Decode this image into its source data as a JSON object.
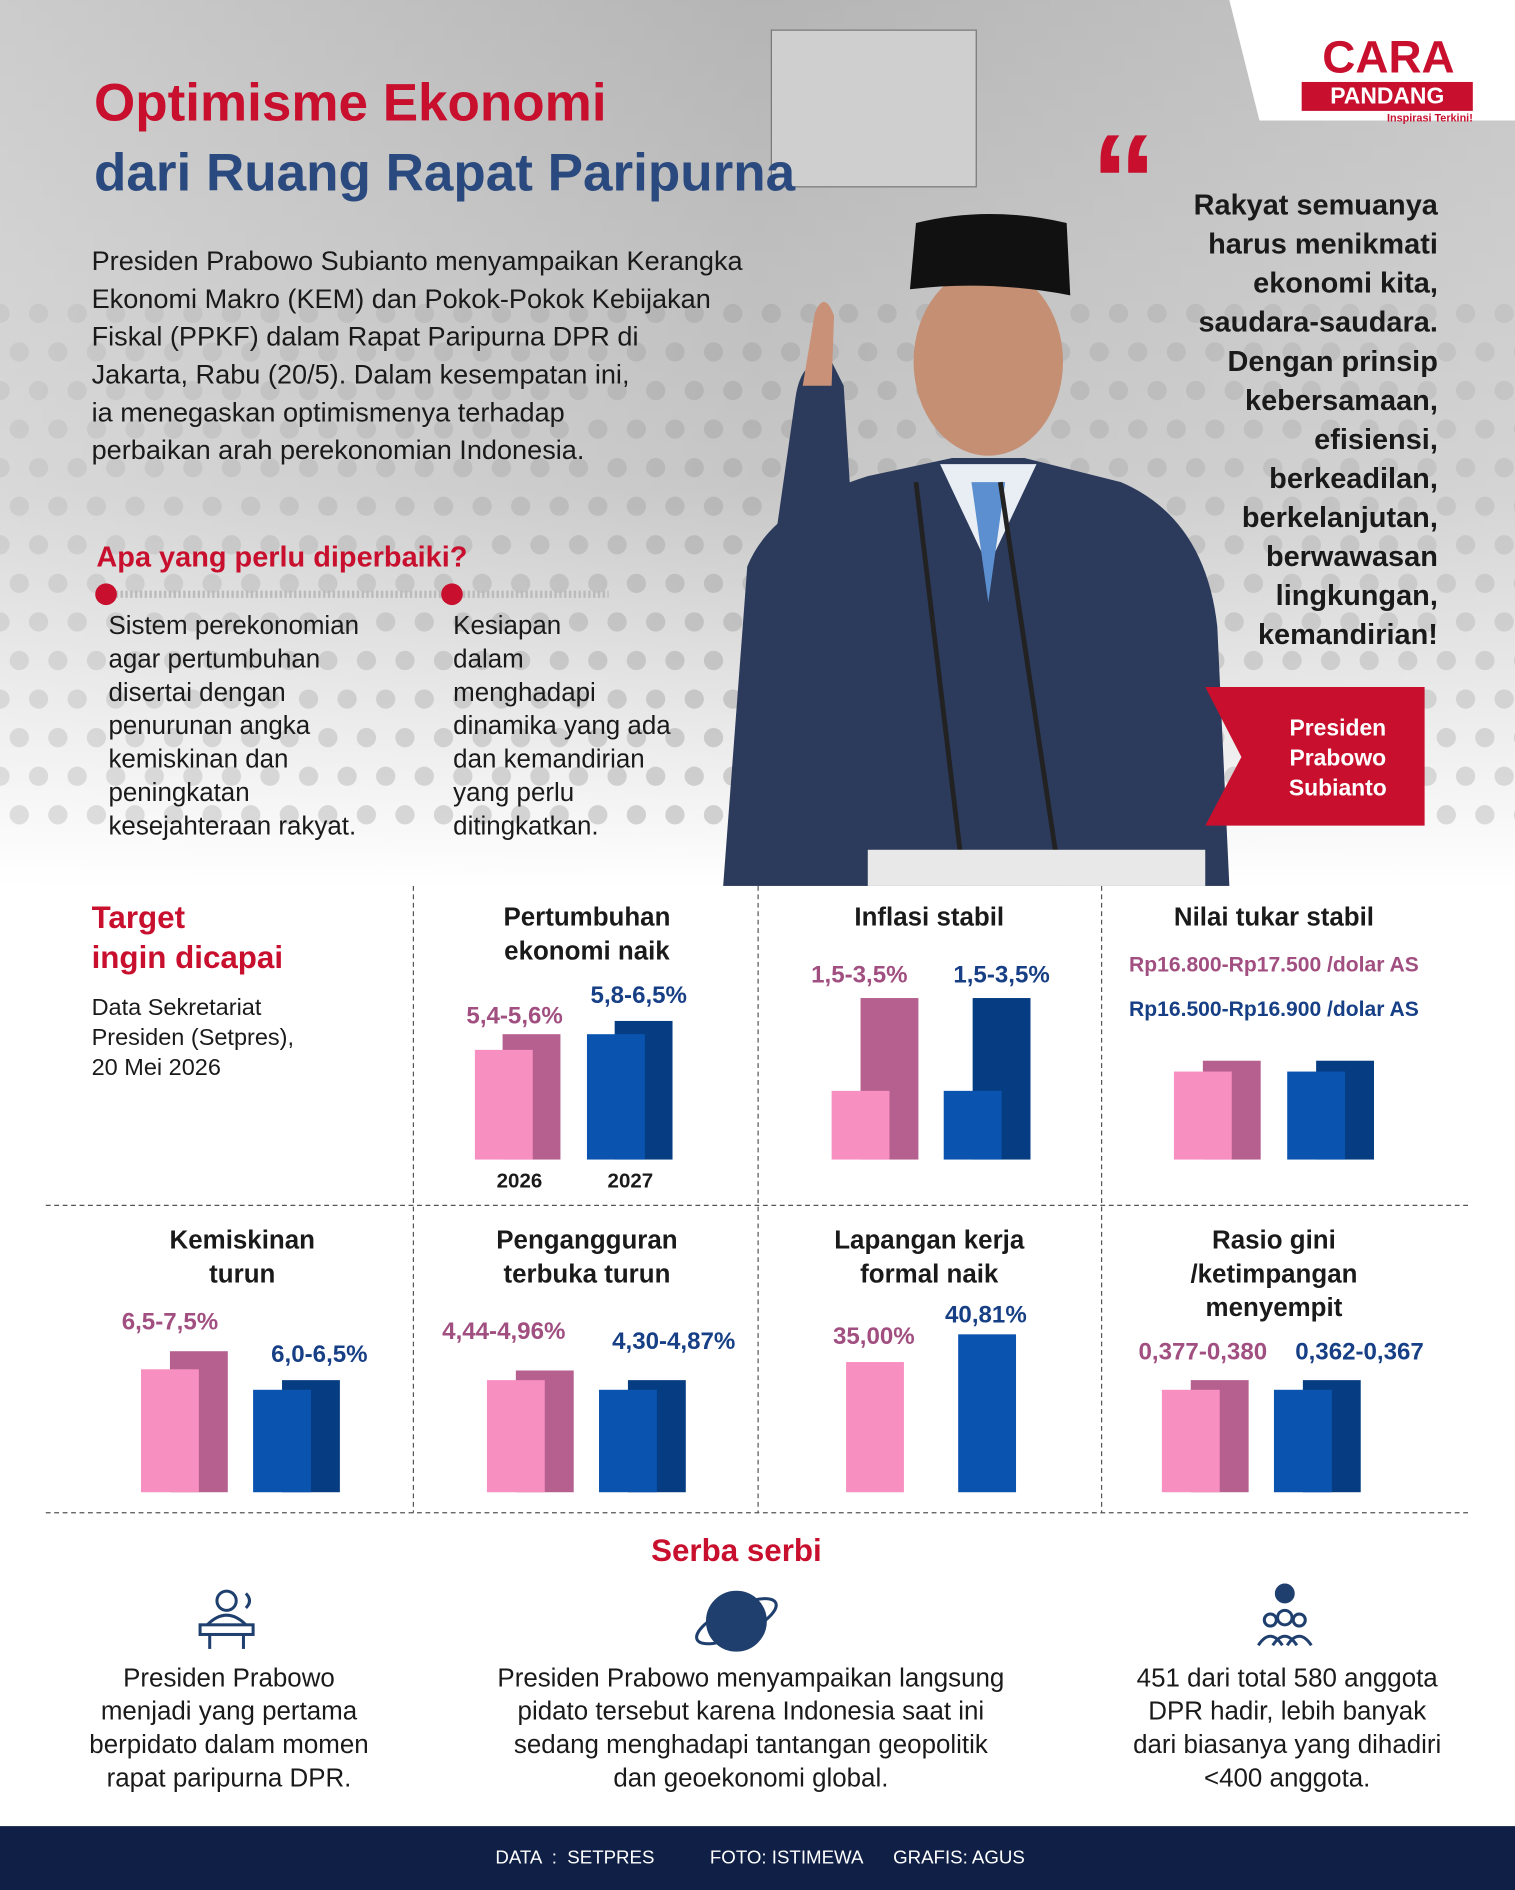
{
  "logo": {
    "top": "CARA",
    "bottom": "PANDANG",
    "tagline": "Inspirasi Terkini!"
  },
  "header": {
    "title": [
      "Optimisme Ekonomi",
      "dari Ruang Rapat Paripurna"
    ],
    "intro": [
      "Presiden Prabowo Subianto menyampaikan Kerangka",
      "Ekonomi Makro (KEM) dan Pokok-Pokok Kebijakan",
      "Fiskal (PPKF) dalam Rapat Paripurna DPR di",
      "Jakarta, Rabu (20/5). Dalam kesempatan ini,",
      "ia menegaskan optimismenya terhadap",
      "perbaikan arah perekonomian Indonesia."
    ]
  },
  "improvements": {
    "heading": "Apa yang perlu diperbaiki?",
    "items": [
      [
        "Sistem perekonomian",
        "agar pertumbuhan",
        "disertai dengan",
        "penurunan angka",
        "kemiskinan dan",
        "peningkatan",
        "kesejahteraan rakyat."
      ],
      [
        "Kesiapan",
        "dalam",
        "menghadapi",
        "dinamika yang ada",
        "dan kemandirian",
        "yang perlu",
        "ditingkatkan."
      ]
    ]
  },
  "quote": {
    "text": [
      "Rakyat semuanya",
      "harus menikmati",
      "ekonomi kita,",
      "saudara-saudara.",
      "Dengan prinsip",
      "kebersamaan,",
      "efisiensi,",
      "berkeadilan,",
      "berkelanjutan,",
      "berwawasan",
      "lingkungan,",
      "kemandirian!"
    ],
    "speaker": [
      "Presiden",
      "Prabowo",
      "Subianto"
    ]
  },
  "targets": {
    "heading": [
      "Target",
      "ingin dicapai"
    ],
    "source": [
      "Data Sekretariat",
      "Presiden (Setpres),",
      "20 Mei 2026"
    ],
    "years": [
      "2026",
      "2027"
    ],
    "cards": [
      {
        "title": [
          "Pertumbuhan",
          "ekonomi naik"
        ],
        "values": [
          "5,4-5,6%",
          "5,8-6,5%"
        ]
      },
      {
        "title": [
          "Inflasi stabil"
        ],
        "values": [
          "1,5-3,5%",
          "1,5-3,5%"
        ]
      },
      {
        "title": [
          "Nilai tukar stabil"
        ],
        "values": [
          "Rp16.800-Rp17.500 /dolar AS",
          "Rp16.500-Rp16.900 /dolar AS"
        ]
      },
      {
        "title": [
          "Kemiskinan",
          "turun"
        ],
        "values": [
          "6,5-7,5%",
          "6,0-6,5%"
        ]
      },
      {
        "title": [
          "Pengangguran",
          "terbuka turun"
        ],
        "values": [
          "4,44-4,96%",
          "4,30-4,87%"
        ]
      },
      {
        "title": [
          "Lapangan kerja",
          "formal naik"
        ],
        "values": [
          "35,00%",
          "40,81%"
        ]
      },
      {
        "title": [
          "Rasio gini",
          "/ketimpangan",
          "menyempit"
        ],
        "values": [
          "0,377-0,380",
          "0,362-0,367"
        ]
      }
    ]
  },
  "extras": {
    "heading": "Serba serbi",
    "items": [
      [
        "Presiden Prabowo",
        "menjadi yang pertama",
        "berpidato dalam momen",
        "rapat paripurna DPR."
      ],
      [
        "Presiden Prabowo menyampaikan langsung",
        "pidato tersebut karena Indonesia saat ini",
        "sedang menghadapi tantangan geopolitik",
        "dan geoekonomi global."
      ],
      [
        "451 dari total 580 anggota",
        "DPR hadir, lebih banyak",
        "dari biasanya yang dihadiri",
        "<400 anggota."
      ]
    ]
  },
  "footer": {
    "data": "DATA  :  SETPRES",
    "photo": "FOTO: ISTIMEWA",
    "graphics": "GRAFIS: AGUS"
  }
}
